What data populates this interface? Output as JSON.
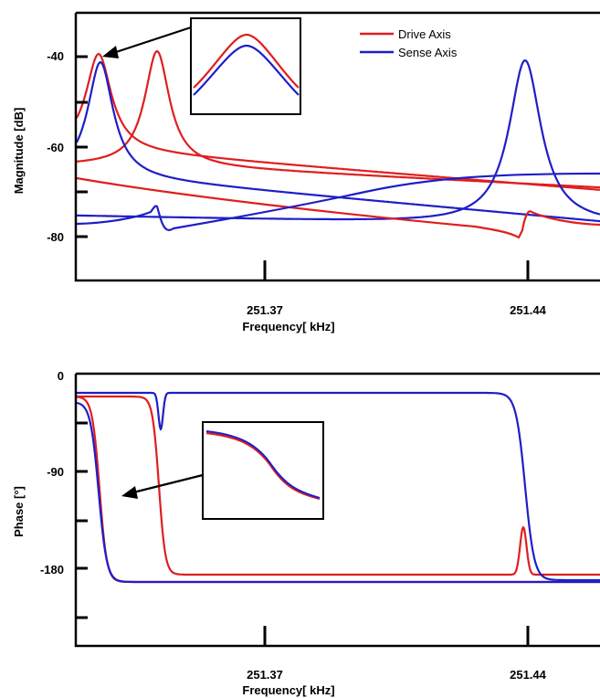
{
  "chart_data": [
    {
      "type": "line",
      "xlabel": "Frequency[ kHz]",
      "ylabel": "Magnitude [dB]",
      "x_tick_labels": [
        "251.37",
        "251.44"
      ],
      "y_tick_labels": [
        "-40",
        "-60",
        "-80"
      ],
      "ylim": [
        -90,
        -34
      ],
      "legend": {
        "position": "top-right",
        "entries": [
          "Drive Axis",
          "Sense Axis"
        ]
      },
      "inset": true,
      "series": [
        {
          "name": "Drive Axis",
          "color": "#e01e1e",
          "curves": [
            {
              "peak_at_tick": 0.102,
              "peak_db": -39,
              "shape": "resonance"
            },
            {
              "peak_at_tick": 0.428,
              "peak_db": -39,
              "shape": "resonance"
            },
            {
              "notch_at_tick": 2.96,
              "shape": "antiresonance"
            }
          ]
        },
        {
          "name": "Sense Axis",
          "color": "#1e1ec8",
          "curves": [
            {
              "peak_at_tick": 0.138,
              "peak_db": -41.5,
              "shape": "resonance"
            },
            {
              "peak_at_tick": 2.96,
              "peak_db": -41,
              "shape": "resonance"
            },
            {
              "notch_at_tick": 0.45,
              "shape": "antiresonance"
            }
          ]
        }
      ]
    },
    {
      "type": "line",
      "xlabel": "Frequency[ kHz]",
      "ylabel": "Phase [°]",
      "x_tick_labels": [
        "251.37",
        "251.44"
      ],
      "y_tick_labels": [
        "0",
        "-90",
        "-180"
      ],
      "ylim": [
        -230,
        0
      ],
      "inset": true,
      "series": [
        {
          "name": "Drive Axis",
          "color": "#e01e1e"
        },
        {
          "name": "Sense Axis",
          "color": "#1e1ec8"
        }
      ]
    }
  ]
}
